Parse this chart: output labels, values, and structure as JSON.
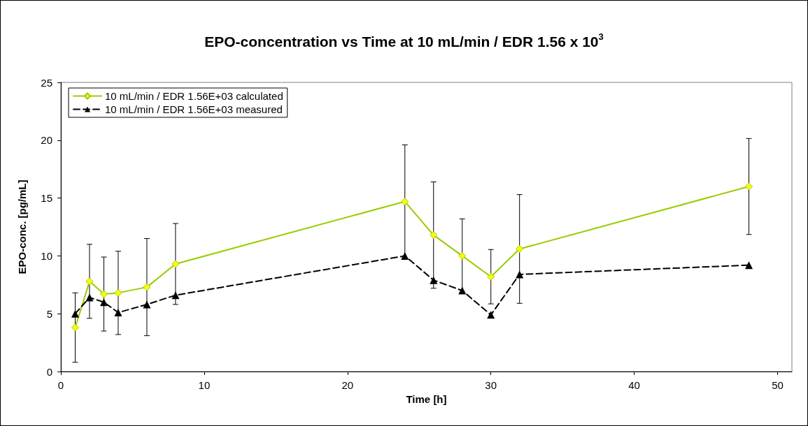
{
  "chart_data": {
    "type": "line",
    "title": "EPO-concentration vs Time at 10 mL/min / EDR 1.56 x 10$^{3}$",
    "xlabel": "Time [h]",
    "ylabel": "EPO-conc. [pg/mL]",
    "xlim": [
      0,
      51
    ],
    "xticks": [
      0,
      10,
      20,
      30,
      40,
      50
    ],
    "ylim": [
      0,
      25
    ],
    "yticks": [
      0,
      5,
      10,
      15,
      20,
      25
    ],
    "grid": false,
    "legend": "top left",
    "series": [
      {
        "name": "10 mL/min / EDR 1.56E+03 calculated",
        "color": "#99cc00",
        "marker": "diamond",
        "line_style": "solid",
        "x": [
          1,
          2,
          3,
          4,
          6,
          8,
          24,
          26,
          28,
          30,
          32,
          48
        ],
        "values": [
          3.8,
          7.8,
          6.7,
          6.8,
          7.3,
          9.3,
          14.7,
          11.8,
          10.0,
          8.2,
          10.6,
          16.0
        ],
        "errors": [
          3.0,
          3.2,
          3.2,
          3.6,
          4.2,
          3.5,
          4.9,
          4.6,
          3.2,
          2.35,
          4.7,
          4.15
        ]
      },
      {
        "name": "10 mL/min / EDR 1.56E+03 measured",
        "color": "#000000",
        "marker": "triangle",
        "line_style": "dashed",
        "x": [
          1,
          2,
          3,
          4,
          6,
          8,
          24,
          26,
          28,
          30,
          32,
          48
        ],
        "values": [
          5.0,
          6.4,
          6.0,
          5.1,
          5.8,
          6.6,
          10.0,
          7.9,
          7.0,
          4.9,
          8.4,
          9.2
        ]
      }
    ]
  }
}
